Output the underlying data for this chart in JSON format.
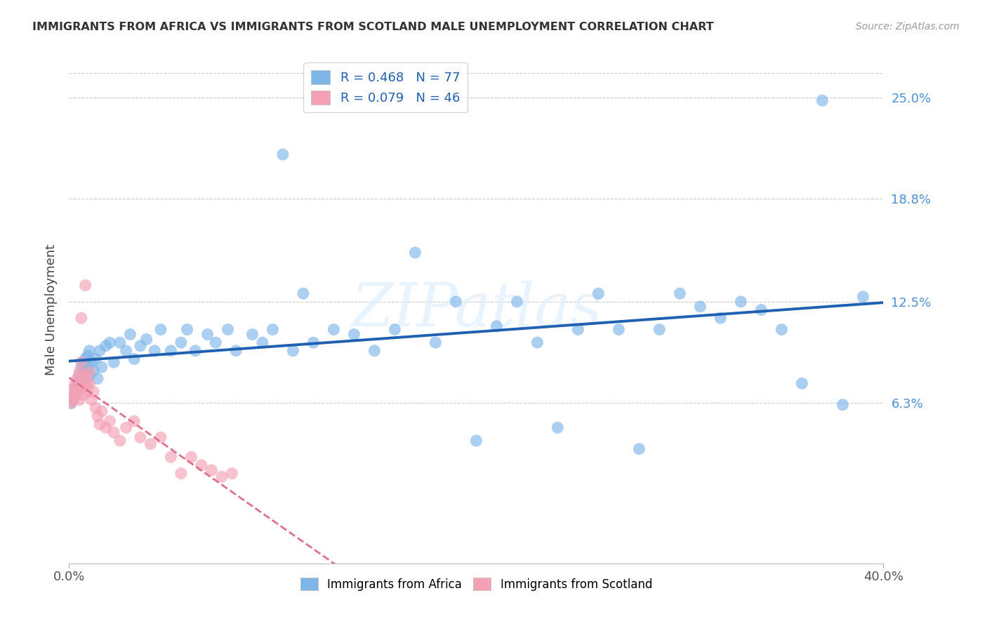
{
  "title": "IMMIGRANTS FROM AFRICA VS IMMIGRANTS FROM SCOTLAND MALE UNEMPLOYMENT CORRELATION CHART",
  "source": "Source: ZipAtlas.com",
  "ylabel": "Male Unemployment",
  "ytick_labels": [
    "6.3%",
    "12.5%",
    "18.8%",
    "25.0%"
  ],
  "ytick_values": [
    0.063,
    0.125,
    0.188,
    0.25
  ],
  "xlim": [
    0.0,
    0.4
  ],
  "ylim_low": -0.035,
  "ylim_high": 0.275,
  "legend_R1": "R = 0.468",
  "legend_N1": "N = 77",
  "legend_R2": "R = 0.079",
  "legend_N2": "N = 46",
  "color_africa": "#7EB6E8",
  "color_scotland": "#F4A0B5",
  "color_africa_line": "#2060B0",
  "color_scotland_line": "#E07090",
  "africa_label": "Immigrants from Africa",
  "scotland_label": "Immigrants from Scotland",
  "watermark": "ZIPatlas",
  "africa_x": [
    0.001,
    0.002,
    0.003,
    0.003,
    0.004,
    0.004,
    0.005,
    0.005,
    0.006,
    0.006,
    0.007,
    0.007,
    0.008,
    0.008,
    0.009,
    0.009,
    0.01,
    0.01,
    0.011,
    0.012,
    0.013,
    0.014,
    0.015,
    0.016,
    0.018,
    0.02,
    0.022,
    0.025,
    0.028,
    0.03,
    0.032,
    0.035,
    0.038,
    0.042,
    0.045,
    0.05,
    0.055,
    0.058,
    0.062,
    0.068,
    0.072,
    0.078,
    0.082,
    0.09,
    0.095,
    0.1,
    0.11,
    0.12,
    0.13,
    0.14,
    0.15,
    0.16,
    0.17,
    0.18,
    0.19,
    0.2,
    0.21,
    0.22,
    0.23,
    0.24,
    0.25,
    0.26,
    0.27,
    0.28,
    0.29,
    0.3,
    0.31,
    0.32,
    0.33,
    0.34,
    0.35,
    0.36,
    0.37,
    0.38,
    0.39,
    0.105,
    0.115
  ],
  "africa_y": [
    0.063,
    0.065,
    0.068,
    0.072,
    0.07,
    0.075,
    0.08,
    0.073,
    0.085,
    0.078,
    0.088,
    0.082,
    0.076,
    0.09,
    0.085,
    0.092,
    0.08,
    0.095,
    0.088,
    0.083,
    0.09,
    0.078,
    0.095,
    0.085,
    0.098,
    0.1,
    0.088,
    0.1,
    0.095,
    0.105,
    0.09,
    0.098,
    0.102,
    0.095,
    0.108,
    0.095,
    0.1,
    0.108,
    0.095,
    0.105,
    0.1,
    0.108,
    0.095,
    0.105,
    0.1,
    0.108,
    0.095,
    0.1,
    0.108,
    0.105,
    0.095,
    0.108,
    0.155,
    0.1,
    0.125,
    0.04,
    0.11,
    0.125,
    0.1,
    0.048,
    0.108,
    0.13,
    0.108,
    0.035,
    0.108,
    0.13,
    0.122,
    0.115,
    0.125,
    0.12,
    0.108,
    0.075,
    0.248,
    0.062,
    0.128,
    0.215,
    0.13
  ],
  "scotland_x": [
    0.001,
    0.001,
    0.002,
    0.002,
    0.003,
    0.003,
    0.004,
    0.004,
    0.005,
    0.005,
    0.005,
    0.006,
    0.006,
    0.006,
    0.007,
    0.007,
    0.008,
    0.008,
    0.009,
    0.009,
    0.01,
    0.01,
    0.011,
    0.012,
    0.013,
    0.014,
    0.015,
    0.016,
    0.018,
    0.02,
    0.022,
    0.025,
    0.028,
    0.032,
    0.035,
    0.04,
    0.045,
    0.05,
    0.055,
    0.06,
    0.065,
    0.07,
    0.075,
    0.08,
    0.006,
    0.008
  ],
  "scotland_y": [
    0.063,
    0.068,
    0.065,
    0.072,
    0.068,
    0.075,
    0.07,
    0.078,
    0.072,
    0.065,
    0.082,
    0.075,
    0.08,
    0.088,
    0.073,
    0.068,
    0.08,
    0.073,
    0.075,
    0.07,
    0.082,
    0.075,
    0.065,
    0.07,
    0.06,
    0.055,
    0.05,
    0.058,
    0.048,
    0.052,
    0.045,
    0.04,
    0.048,
    0.052,
    0.042,
    0.038,
    0.042,
    0.03,
    0.02,
    0.03,
    0.025,
    0.022,
    0.018,
    0.02,
    0.115,
    0.135
  ]
}
